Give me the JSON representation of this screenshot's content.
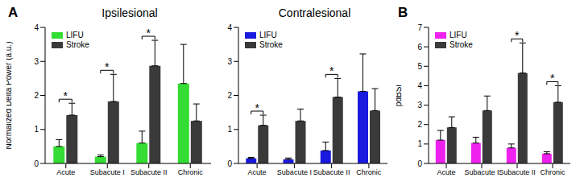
{
  "chart_data": [
    {
      "type": "bar",
      "panel_label": "A",
      "title": "Ipsilesional",
      "y_label": "Normalized Delta Power (a.u.)",
      "categories": [
        "Acute",
        "Subacute I",
        "Subacute II",
        "Chronic"
      ],
      "series": [
        {
          "name": "LIFU",
          "color": "#33dd33",
          "values": [
            0.5,
            0.2,
            0.6,
            2.35
          ],
          "errors": [
            0.2,
            0.05,
            0.35,
            1.15
          ]
        },
        {
          "name": "Stroke",
          "color": "#3a3a3a",
          "values": [
            1.42,
            1.82,
            2.87,
            1.25
          ],
          "errors": [
            0.35,
            0.8,
            0.75,
            0.5
          ]
        }
      ],
      "significance": [
        "*",
        "*",
        "*",
        null
      ],
      "ylim": [
        0,
        4
      ],
      "yticks": [
        0,
        1,
        2,
        3,
        4
      ],
      "legend": "upper left"
    },
    {
      "type": "bar",
      "title": "Contralesional",
      "categories": [
        "Acute",
        "Subacute I",
        "Subacute II",
        "Chronic"
      ],
      "series": [
        {
          "name": "LIFU",
          "color": "#1a1adf",
          "values": [
            0.15,
            0.12,
            0.38,
            2.12
          ],
          "errors": [
            0.03,
            0.04,
            0.25,
            1.1
          ]
        },
        {
          "name": "Stroke",
          "color": "#3a3a3a",
          "values": [
            1.12,
            1.25,
            1.95,
            1.55
          ],
          "errors": [
            0.3,
            0.35,
            0.55,
            0.65
          ]
        }
      ],
      "significance": [
        "*",
        null,
        "*",
        null
      ],
      "ylim": [
        0,
        4
      ],
      "yticks": [
        0,
        1,
        2,
        3,
        4
      ],
      "legend": "upper left"
    },
    {
      "type": "bar",
      "panel_label": "B",
      "y_label": "pdBSI",
      "categories": [
        "Acute",
        "Subacute I",
        "Subacute II",
        "Chronic"
      ],
      "series": [
        {
          "name": "LIFU",
          "color": "#ee22ee",
          "values": [
            1.2,
            1.05,
            0.8,
            0.5
          ],
          "errors": [
            0.5,
            0.3,
            0.2,
            0.1
          ]
        },
        {
          "name": "Stroke",
          "color": "#3a3a3a",
          "values": [
            1.85,
            2.72,
            4.65,
            3.15
          ],
          "errors": [
            0.55,
            0.75,
            1.55,
            0.85
          ]
        }
      ],
      "significance": [
        null,
        null,
        "*",
        "*"
      ],
      "ylim": [
        0,
        7
      ],
      "yticks": [
        0,
        1,
        2,
        3,
        4,
        5,
        6,
        7
      ],
      "legend": "upper left"
    }
  ]
}
